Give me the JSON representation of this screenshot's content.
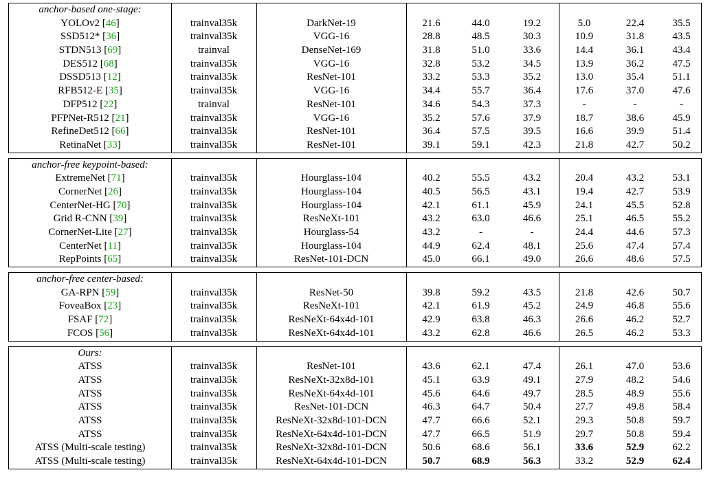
{
  "sections": [
    {
      "title": "anchor-based one-stage:",
      "rows": [
        {
          "method": "YOLOv2",
          "ref": "46",
          "data": "trainval35k",
          "backbone": "DarkNet-19",
          "ap": "21.6",
          "ap50": "44.0",
          "ap75": "19.2",
          "aps": "5.0",
          "apm": "22.4",
          "apl": "35.5"
        },
        {
          "method": "SSD512*",
          "ref": "36",
          "data": "trainval35k",
          "backbone": "VGG-16",
          "ap": "28.8",
          "ap50": "48.5",
          "ap75": "30.3",
          "aps": "10.9",
          "apm": "31.8",
          "apl": "43.5"
        },
        {
          "method": "STDN513",
          "ref": "69",
          "data": "trainval",
          "backbone": "DenseNet-169",
          "ap": "31.8",
          "ap50": "51.0",
          "ap75": "33.6",
          "aps": "14.4",
          "apm": "36.1",
          "apl": "43.4"
        },
        {
          "method": "DES512",
          "ref": "68",
          "data": "trainval35k",
          "backbone": "VGG-16",
          "ap": "32.8",
          "ap50": "53.2",
          "ap75": "34.5",
          "aps": "13.9",
          "apm": "36.2",
          "apl": "47.5"
        },
        {
          "method": "DSSD513",
          "ref": "12",
          "data": "trainval35k",
          "backbone": "ResNet-101",
          "ap": "33.2",
          "ap50": "53.3",
          "ap75": "35.2",
          "aps": "13.0",
          "apm": "35.4",
          "apl": "51.1"
        },
        {
          "method": "RFB512-E",
          "ref": "35",
          "data": "trainval35k",
          "backbone": "VGG-16",
          "ap": "34.4",
          "ap50": "55.7",
          "ap75": "36.4",
          "aps": "17.6",
          "apm": "37.0",
          "apl": "47.6"
        },
        {
          "method": "DFP512",
          "ref": "22",
          "data": "trainval",
          "backbone": "ResNet-101",
          "ap": "34.6",
          "ap50": "54.3",
          "ap75": "37.3",
          "aps": "-",
          "apm": "-",
          "apl": "-"
        },
        {
          "method": "PFPNet-R512",
          "ref": "21",
          "data": "trainval35k",
          "backbone": "VGG-16",
          "ap": "35.2",
          "ap50": "57.6",
          "ap75": "37.9",
          "aps": "18.7",
          "apm": "38.6",
          "apl": "45.9"
        },
        {
          "method": "RefineDet512",
          "ref": "66",
          "data": "trainval35k",
          "backbone": "ResNet-101",
          "ap": "36.4",
          "ap50": "57.5",
          "ap75": "39.5",
          "aps": "16.6",
          "apm": "39.9",
          "apl": "51.4"
        },
        {
          "method": "RetinaNet",
          "ref": "33",
          "data": "trainval35k",
          "backbone": "ResNet-101",
          "ap": "39.1",
          "ap50": "59.1",
          "ap75": "42.3",
          "aps": "21.8",
          "apm": "42.7",
          "apl": "50.2"
        }
      ]
    },
    {
      "title": "anchor-free keypoint-based:",
      "rows": [
        {
          "method": "ExtremeNet",
          "ref": "71",
          "data": "trainval35k",
          "backbone": "Hourglass-104",
          "ap": "40.2",
          "ap50": "55.5",
          "ap75": "43.2",
          "aps": "20.4",
          "apm": "43.2",
          "apl": "53.1"
        },
        {
          "method": "CornerNet",
          "ref": "26",
          "data": "trainval35k",
          "backbone": "Hourglass-104",
          "ap": "40.5",
          "ap50": "56.5",
          "ap75": "43.1",
          "aps": "19.4",
          "apm": "42.7",
          "apl": "53.9"
        },
        {
          "method": "CenterNet-HG",
          "ref": "70",
          "data": "trainval35k",
          "backbone": "Hourglass-104",
          "ap": "42.1",
          "ap50": "61.1",
          "ap75": "45.9",
          "aps": "24.1",
          "apm": "45.5",
          "apl": "52.8"
        },
        {
          "method": "Grid R-CNN",
          "ref": "39",
          "data": "trainval35k",
          "backbone": "ResNeXt-101",
          "ap": "43.2",
          "ap50": "63.0",
          "ap75": "46.6",
          "aps": "25.1",
          "apm": "46.5",
          "apl": "55.2"
        },
        {
          "method": "CornerNet-Lite",
          "ref": "27",
          "data": "trainval35k",
          "backbone": "Hourglass-54",
          "ap": "43.2",
          "ap50": "-",
          "ap75": "-",
          "aps": "24.4",
          "apm": "44.6",
          "apl": "57.3"
        },
        {
          "method": "CenterNet",
          "ref": "11",
          "data": "trainval35k",
          "backbone": "Hourglass-104",
          "ap": "44.9",
          "ap50": "62.4",
          "ap75": "48.1",
          "aps": "25.6",
          "apm": "47.4",
          "apl": "57.4"
        },
        {
          "method": "RepPoints",
          "ref": "65",
          "data": "trainval35k",
          "backbone": "ResNet-101-DCN",
          "ap": "45.0",
          "ap50": "66.1",
          "ap75": "49.0",
          "aps": "26.6",
          "apm": "48.6",
          "apl": "57.5"
        }
      ]
    },
    {
      "title": "anchor-free center-based:",
      "rows": [
        {
          "method": "GA-RPN",
          "ref": "59",
          "data": "trainval35k",
          "backbone": "ResNet-50",
          "ap": "39.8",
          "ap50": "59.2",
          "ap75": "43.5",
          "aps": "21.8",
          "apm": "42.6",
          "apl": "50.7"
        },
        {
          "method": "FoveaBox",
          "ref": "23",
          "data": "trainval35k",
          "backbone": "ResNeXt-101",
          "ap": "42.1",
          "ap50": "61.9",
          "ap75": "45.2",
          "aps": "24.9",
          "apm": "46.8",
          "apl": "55.6"
        },
        {
          "method": "FSAF",
          "ref": "72",
          "data": "trainval35k",
          "backbone": "ResNeXt-64x4d-101",
          "ap": "42.9",
          "ap50": "63.8",
          "ap75": "46.3",
          "aps": "26.6",
          "apm": "46.2",
          "apl": "52.7"
        },
        {
          "method": "FCOS",
          "ref": "56",
          "data": "trainval35k",
          "backbone": "ResNeXt-64x4d-101",
          "ap": "43.2",
          "ap50": "62.8",
          "ap75": "46.6",
          "aps": "26.5",
          "apm": "46.2",
          "apl": "53.3"
        }
      ]
    },
    {
      "title": "Ours:",
      "rows": [
        {
          "method": "ATSS",
          "ref": "",
          "data": "trainval35k",
          "backbone": "ResNet-101",
          "ap": "43.6",
          "ap50": "62.1",
          "ap75": "47.4",
          "aps": "26.1",
          "apm": "47.0",
          "apl": "53.6"
        },
        {
          "method": "ATSS",
          "ref": "",
          "data": "trainval35k",
          "backbone": "ResNeXt-32x8d-101",
          "ap": "45.1",
          "ap50": "63.9",
          "ap75": "49.1",
          "aps": "27.9",
          "apm": "48.2",
          "apl": "54.6"
        },
        {
          "method": "ATSS",
          "ref": "",
          "data": "trainval35k",
          "backbone": "ResNeXt-64x4d-101",
          "ap": "45.6",
          "ap50": "64.6",
          "ap75": "49.7",
          "aps": "28.5",
          "apm": "48.9",
          "apl": "55.6"
        },
        {
          "method": "ATSS",
          "ref": "",
          "data": "trainval35k",
          "backbone": "ResNet-101-DCN",
          "ap": "46.3",
          "ap50": "64.7",
          "ap75": "50.4",
          "aps": "27.7",
          "apm": "49.8",
          "apl": "58.4"
        },
        {
          "method": "ATSS",
          "ref": "",
          "data": "trainval35k",
          "backbone": "ResNeXt-32x8d-101-DCN",
          "ap": "47.7",
          "ap50": "66.6",
          "ap75": "52.1",
          "aps": "29.3",
          "apm": "50.8",
          "apl": "59.7"
        },
        {
          "method": "ATSS",
          "ref": "",
          "data": "trainval35k",
          "backbone": "ResNeXt-64x4d-101-DCN",
          "ap": "47.7",
          "ap50": "66.5",
          "ap75": "51.9",
          "aps": "29.7",
          "apm": "50.8",
          "apl": "59.4"
        },
        {
          "method": "ATSS (Multi-scale testing)",
          "ref": "",
          "data": "trainval35k",
          "backbone": "ResNeXt-32x8d-101-DCN",
          "ap": "50.6",
          "ap50": "68.6",
          "ap75": "56.1",
          "aps": "33.6",
          "apm": "52.9",
          "apl": "62.2",
          "bold": [
            "aps",
            "apm"
          ]
        },
        {
          "method": "ATSS (Multi-scale testing)",
          "ref": "",
          "data": "trainval35k",
          "backbone": "ResNeXt-64x4d-101-DCN",
          "ap": "50.7",
          "ap50": "68.9",
          "ap75": "56.3",
          "aps": "33.2",
          "apm": "52.9",
          "apl": "62.4",
          "bold": [
            "ap",
            "ap50",
            "ap75",
            "apm",
            "apl"
          ]
        }
      ]
    }
  ]
}
